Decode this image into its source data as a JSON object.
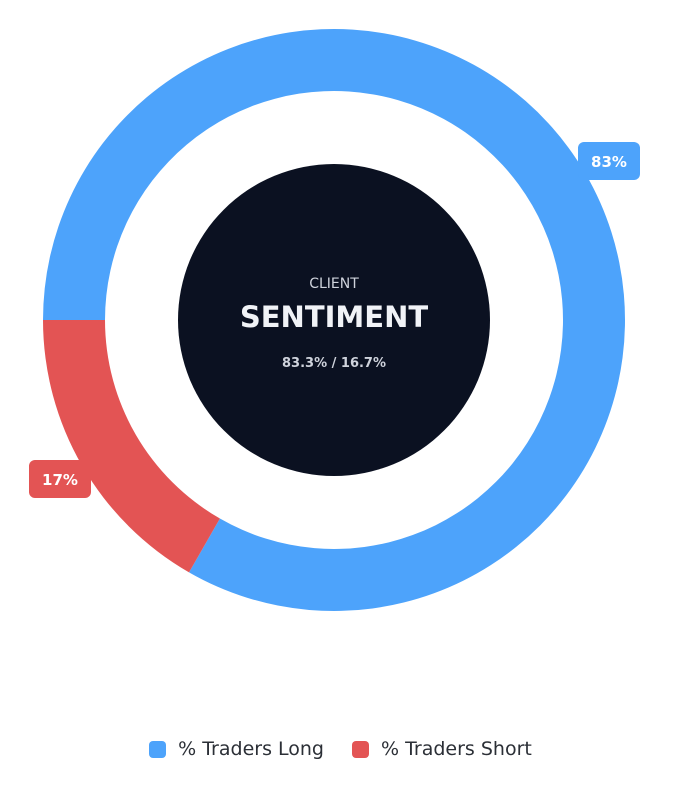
{
  "chart_data": {
    "type": "pie",
    "variant": "donut",
    "series": [
      {
        "name": "% Traders Long",
        "value": 83.3,
        "label": "83%",
        "color": "#4da3fb"
      },
      {
        "name": "% Traders Short",
        "value": 16.7,
        "label": "17%",
        "color": "#e35454"
      }
    ],
    "legend_position": "bottom"
  },
  "center": {
    "line1": "CLIENT",
    "line2": "SENTIMENT",
    "line3": "83.3% / 16.7%",
    "background": "#0b1121"
  },
  "legend": {
    "long_label": "% Traders Long",
    "short_label": "% Traders Short"
  }
}
